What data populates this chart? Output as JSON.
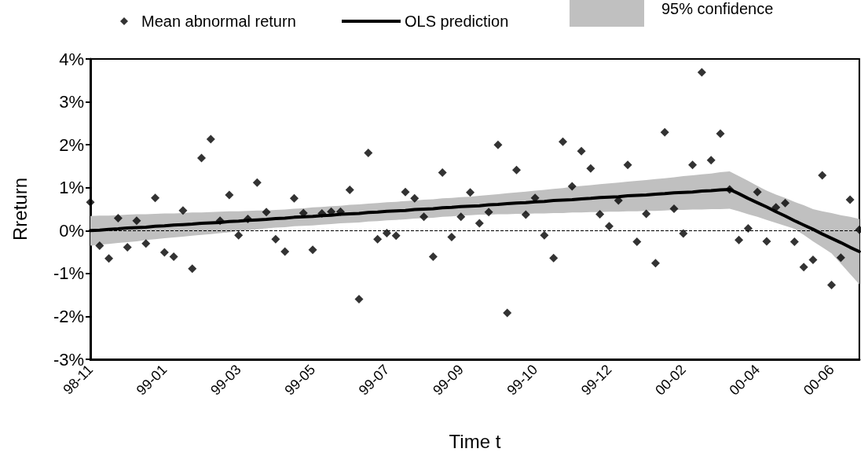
{
  "chart_data": {
    "type": "scatter",
    "xlabel": "Time t",
    "ylabel": "Rreturn",
    "categories": [
      "98-11",
      null,
      null,
      null,
      null,
      null,
      null,
      null,
      "99-01",
      null,
      null,
      null,
      null,
      null,
      null,
      null,
      "99-03",
      null,
      null,
      null,
      null,
      null,
      null,
      null,
      "99-05",
      null,
      null,
      null,
      null,
      null,
      null,
      null,
      "99-07",
      null,
      null,
      null,
      null,
      null,
      null,
      null,
      "99-09",
      null,
      null,
      null,
      null,
      null,
      null,
      null,
      "99-10",
      null,
      null,
      null,
      null,
      null,
      null,
      null,
      "99-12",
      null,
      null,
      null,
      null,
      null,
      null,
      null,
      "00-02",
      null,
      null,
      null,
      null,
      null,
      null,
      null,
      "00-04",
      null,
      null,
      null,
      null,
      null,
      null,
      null,
      "00-06",
      null,
      null,
      null
    ],
    "series": [
      {
        "name": "Mean abnormal return",
        "marker": "diamond",
        "color": "#000000",
        "values": [
          0.66,
          -0.35,
          -0.65,
          0.29,
          -0.39,
          0.23,
          -0.3,
          0.76,
          -0.51,
          -0.61,
          0.47,
          -0.89,
          1.69,
          2.13,
          0.23,
          0.83,
          -0.11,
          0.27,
          1.12,
          0.43,
          -0.2,
          -0.49,
          0.75,
          0.41,
          -0.45,
          0.4,
          0.44,
          0.44,
          0.95,
          -1.6,
          1.81,
          -0.2,
          -0.06,
          -0.12,
          0.9,
          0.75,
          0.32,
          -0.61,
          1.35,
          -0.15,
          0.32,
          0.89,
          0.17,
          0.43,
          2.0,
          -1.92,
          1.41,
          0.37,
          0.76,
          -0.11,
          -0.64,
          2.07,
          1.03,
          1.85,
          1.45,
          0.38,
          0.1,
          0.7,
          1.53,
          -0.26,
          0.39,
          -0.76,
          2.29,
          0.51,
          -0.07,
          1.53,
          3.69,
          1.64,
          2.26,
          0.96,
          -0.22,
          0.05,
          0.9,
          -0.25,
          0.54,
          0.64,
          -0.26,
          -0.85,
          -0.68,
          1.29,
          -1.27,
          -0.63,
          0.72,
          0.02
        ]
      },
      {
        "name": "OLS prediction",
        "type": "line",
        "marker": "none",
        "line_style": "solid",
        "color": "#000000",
        "values": [
          0.0,
          0.01,
          0.03,
          0.04,
          0.06,
          0.07,
          0.08,
          0.1,
          0.11,
          0.13,
          0.14,
          0.15,
          0.17,
          0.18,
          0.19,
          0.21,
          0.22,
          0.24,
          0.25,
          0.26,
          0.28,
          0.29,
          0.31,
          0.32,
          0.33,
          0.35,
          0.36,
          0.38,
          0.39,
          0.4,
          0.42,
          0.43,
          0.45,
          0.46,
          0.47,
          0.49,
          0.5,
          0.51,
          0.53,
          0.54,
          0.56,
          0.57,
          0.58,
          0.6,
          0.61,
          0.63,
          0.64,
          0.65,
          0.67,
          0.68,
          0.7,
          0.71,
          0.72,
          0.74,
          0.75,
          0.77,
          0.78,
          0.79,
          0.81,
          0.82,
          0.83,
          0.85,
          0.86,
          0.88,
          0.89,
          0.9,
          0.92,
          0.93,
          0.95,
          0.96,
          0.86,
          0.75,
          0.65,
          0.55,
          0.44,
          0.34,
          0.23,
          0.13,
          0.03,
          -0.08,
          -0.18,
          -0.28,
          -0.39,
          -0.49
        ],
        "upper": [
          0.34,
          0.35,
          0.35,
          0.36,
          0.37,
          0.38,
          0.38,
          0.39,
          0.4,
          0.4,
          0.41,
          0.42,
          0.42,
          0.43,
          0.44,
          0.45,
          0.45,
          0.46,
          0.47,
          0.47,
          0.48,
          0.49,
          0.51,
          0.52,
          0.54,
          0.55,
          0.57,
          0.58,
          0.6,
          0.61,
          0.63,
          0.64,
          0.66,
          0.67,
          0.69,
          0.7,
          0.72,
          0.73,
          0.75,
          0.76,
          0.78,
          0.79,
          0.81,
          0.83,
          0.85,
          0.87,
          0.89,
          0.91,
          0.93,
          0.95,
          0.97,
          0.99,
          1.02,
          1.04,
          1.06,
          1.08,
          1.1,
          1.12,
          1.14,
          1.16,
          1.18,
          1.2,
          1.22,
          1.24,
          1.27,
          1.29,
          1.31,
          1.33,
          1.36,
          1.38,
          1.27,
          1.16,
          1.04,
          0.93,
          0.84,
          0.76,
          0.67,
          0.59,
          0.5,
          0.45,
          0.41,
          0.36,
          0.32,
          0.27
        ],
        "lower": [
          -0.35,
          -0.33,
          -0.31,
          -0.29,
          -0.27,
          -0.25,
          -0.22,
          -0.2,
          -0.18,
          -0.16,
          -0.14,
          -0.12,
          -0.1,
          -0.08,
          -0.06,
          -0.04,
          -0.01,
          0.01,
          0.03,
          0.05,
          0.07,
          0.08,
          0.1,
          0.11,
          0.12,
          0.14,
          0.15,
          0.17,
          0.18,
          0.19,
          0.21,
          0.22,
          0.24,
          0.25,
          0.26,
          0.28,
          0.29,
          0.3,
          0.32,
          0.33,
          0.35,
          0.36,
          0.37,
          0.37,
          0.38,
          0.38,
          0.39,
          0.39,
          0.4,
          0.4,
          0.41,
          0.41,
          0.42,
          0.42,
          0.43,
          0.43,
          0.44,
          0.44,
          0.45,
          0.45,
          0.46,
          0.46,
          0.47,
          0.48,
          0.48,
          0.49,
          0.49,
          0.5,
          0.5,
          0.51,
          0.45,
          0.38,
          0.32,
          0.25,
          0.18,
          0.11,
          0.04,
          -0.1,
          -0.25,
          -0.39,
          -0.53,
          -0.77,
          -1.01,
          -1.25
        ]
      }
    ],
    "annotations": [
      "95% confidence"
    ],
    "ylim": [
      -3,
      4
    ],
    "yticks": [
      {
        "value": -3,
        "label": "-3%"
      },
      {
        "value": -2,
        "label": "-2%"
      },
      {
        "value": -1,
        "label": "-1%"
      },
      {
        "value": 0,
        "label": "0%"
      },
      {
        "value": 1,
        "label": "1%"
      },
      {
        "value": 2,
        "label": "2%"
      },
      {
        "value": 3,
        "label": "3%"
      },
      {
        "value": 4,
        "label": "4%"
      }
    ],
    "ref_lines": [
      {
        "axis": "y",
        "value": 0,
        "line_style": "dashed",
        "color": "#000000"
      }
    ],
    "grid": false,
    "legend": "top"
  }
}
